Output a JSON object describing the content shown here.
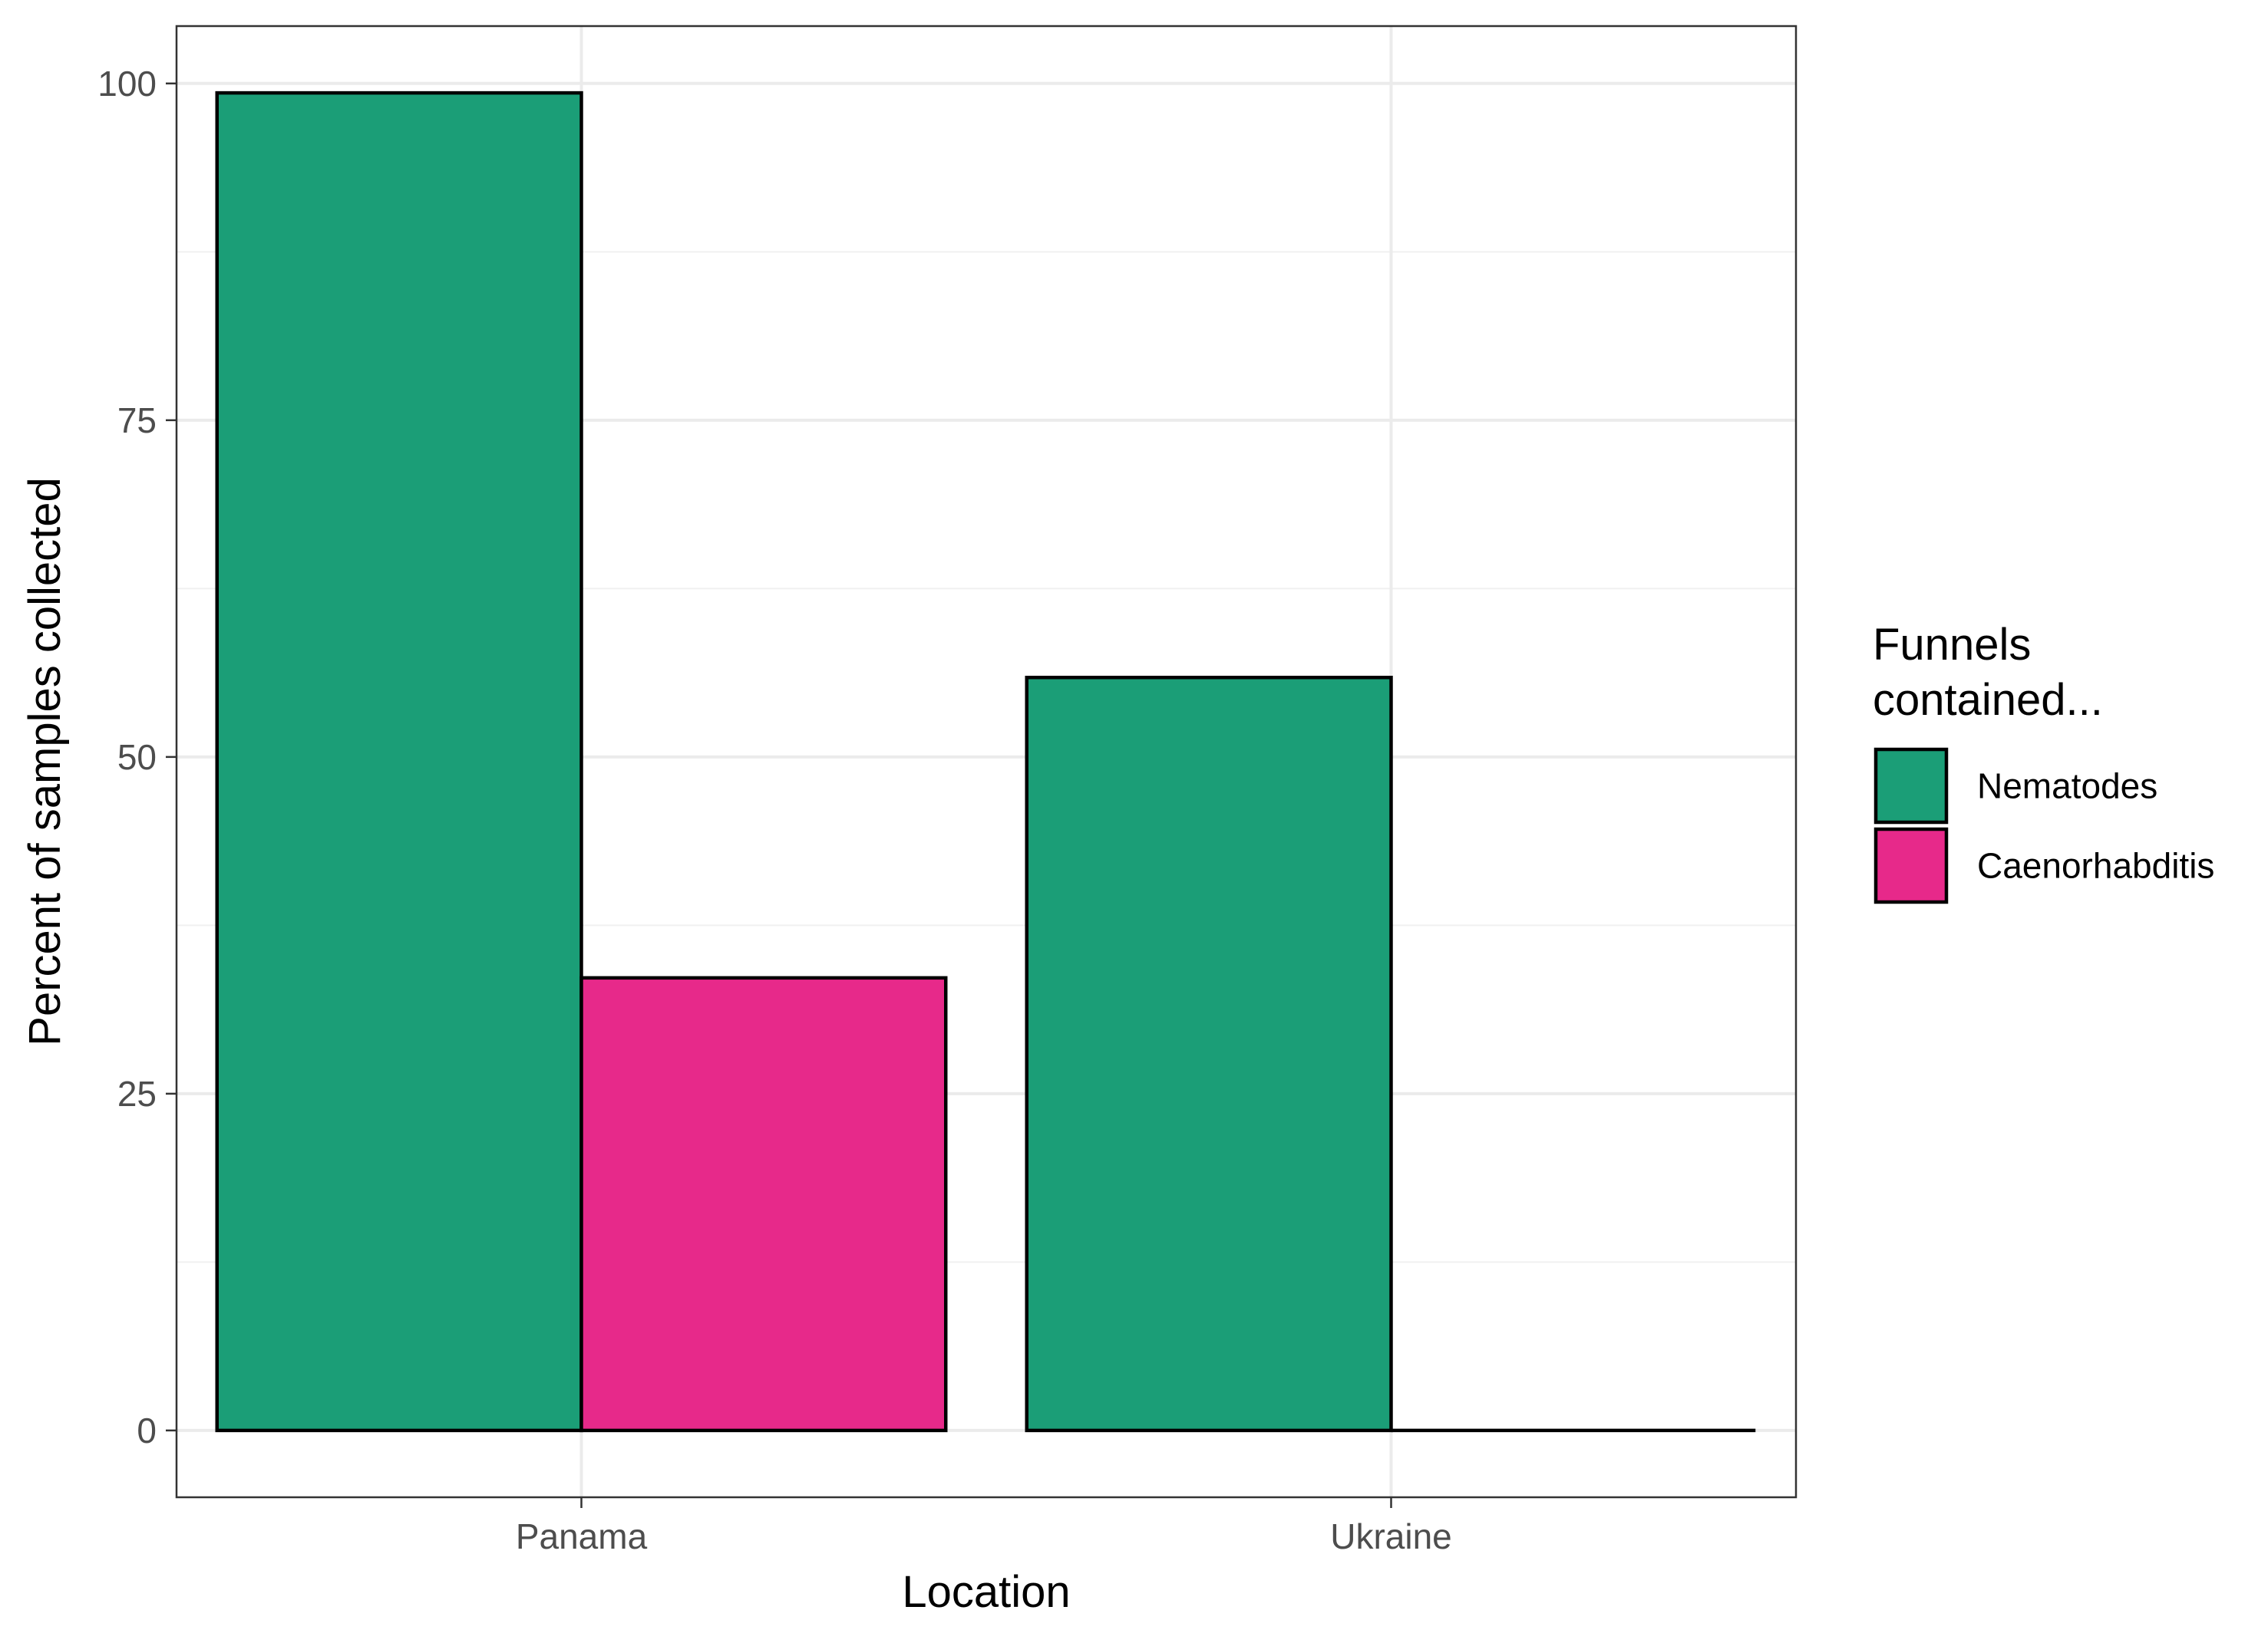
{
  "chart_data": {
    "type": "bar",
    "categories": [
      "Panama",
      "Ukraine"
    ],
    "series": [
      {
        "name": "Nematodes",
        "color": "#1b9e77",
        "values": [
          99.3,
          55.9
        ]
      },
      {
        "name": "Caenorhabditis",
        "color": "#e7298a",
        "values": [
          33.6,
          0
        ]
      }
    ],
    "xlabel": "Location",
    "ylabel": "Percent of samples collected",
    "ylim": [
      -4.96,
      104.26
    ],
    "yticks": [
      0,
      25,
      50,
      75,
      100
    ],
    "grid": true,
    "legend": {
      "title": "Funnels contained...",
      "position": "right"
    }
  }
}
